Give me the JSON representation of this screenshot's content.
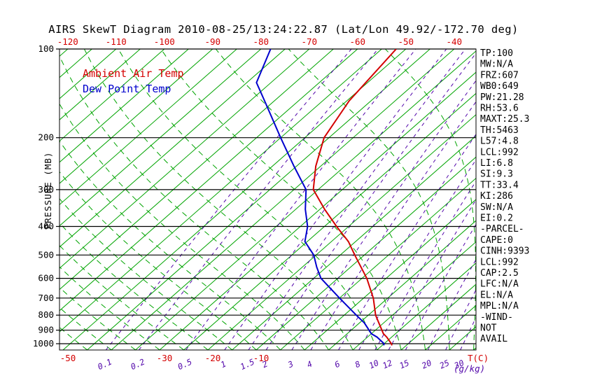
{
  "title": "AIRS SkewT Diagram 2010-08-25/13:24:22.87 (Lat/Lon 49.92/-172.70 deg)",
  "legend": {
    "ambient": "Ambient Air Temp",
    "dewpoint": "Dew Point Temp"
  },
  "colors": {
    "isotherm": "#00a400",
    "moist_adiabat": "#00a400",
    "mixing_ratio": "#5206aa",
    "temperature": "#d40000",
    "dewpoint": "#0000cd",
    "axis": "#000000"
  },
  "axes": {
    "pressure_label": "PRESSURE (MB)",
    "pressure_ticks": [
      100,
      200,
      300,
      400,
      500,
      600,
      700,
      800,
      900,
      1000
    ],
    "top_temp_labels": [
      -120,
      -110,
      -100,
      -90,
      -80,
      -70,
      -60,
      -50,
      -40
    ],
    "bottom_temp_labels": [
      -50,
      -30,
      -20,
      -10
    ],
    "temp_unit_label": "T(C)",
    "mixing_unit_label": "(g/kg)"
  },
  "stats": [
    "TP:100",
    "MW:N/A",
    "FRZ:607",
    "WB0:649",
    "PW:21.28",
    "RH:53.6",
    "MAXT:25.3",
    "TH:5463",
    "L57:4.8",
    "LCL:992",
    "LI:6.8",
    "SI:9.3",
    "TT:33.4",
    "KI:286",
    "SW:N/A",
    "EI:0.2",
    "-PARCEL-",
    "CAPE:0",
    "CINH:9393",
    "LCL:992",
    "CAP:2.5",
    "LFC:N/A",
    "EL:N/A",
    "MPL:N/A",
    "-WIND-",
    "NOT",
    "AVAIL"
  ],
  "chart_data": {
    "type": "skewt",
    "pressure_range_mb": [
      100,
      1050
    ],
    "isotherms": {
      "min_c": -130,
      "max_c": 35,
      "step_c": 5
    },
    "moist_adiabat_surface_temps_c": [
      -45,
      -40,
      -35,
      -30,
      -25,
      -20,
      -15,
      -10,
      -5,
      0,
      5,
      10,
      15,
      20,
      25,
      30,
      35,
      40,
      45,
      50,
      55,
      60
    ],
    "mixing_ratio_lines_g_kg": [
      0.1,
      0.2,
      0.5,
      1,
      1.5,
      2,
      3,
      4,
      6,
      8,
      10,
      12,
      15,
      20,
      25,
      30
    ],
    "temperature_profile": [
      {
        "p": 1013,
        "t": 17
      },
      {
        "p": 1000,
        "t": 16.5
      },
      {
        "p": 950,
        "t": 14
      },
      {
        "p": 925,
        "t": 12.5
      },
      {
        "p": 850,
        "t": 9
      },
      {
        "p": 800,
        "t": 6.5
      },
      {
        "p": 700,
        "t": 2
      },
      {
        "p": 600,
        "t": -4
      },
      {
        "p": 500,
        "t": -12
      },
      {
        "p": 450,
        "t": -16.5
      },
      {
        "p": 400,
        "t": -22.5
      },
      {
        "p": 350,
        "t": -29
      },
      {
        "p": 300,
        "t": -36
      },
      {
        "p": 250,
        "t": -41
      },
      {
        "p": 200,
        "t": -46
      },
      {
        "p": 150,
        "t": -49.5
      },
      {
        "p": 100,
        "t": -52
      }
    ],
    "dewpoint_profile": [
      {
        "p": 1013,
        "t": 15.3
      },
      {
        "p": 1000,
        "t": 15
      },
      {
        "p": 950,
        "t": 12
      },
      {
        "p": 925,
        "t": 10
      },
      {
        "p": 850,
        "t": 6
      },
      {
        "p": 800,
        "t": 2.5
      },
      {
        "p": 700,
        "t": -5
      },
      {
        "p": 600,
        "t": -13.5
      },
      {
        "p": 550,
        "t": -17
      },
      {
        "p": 500,
        "t": -20.5
      },
      {
        "p": 450,
        "t": -25.5
      },
      {
        "p": 400,
        "t": -28.5
      },
      {
        "p": 350,
        "t": -33
      },
      {
        "p": 300,
        "t": -37.5
      },
      {
        "p": 250,
        "t": -45.5
      },
      {
        "p": 200,
        "t": -55
      },
      {
        "p": 150,
        "t": -67
      },
      {
        "p": 130,
        "t": -73
      },
      {
        "p": 100,
        "t": -78
      }
    ]
  }
}
